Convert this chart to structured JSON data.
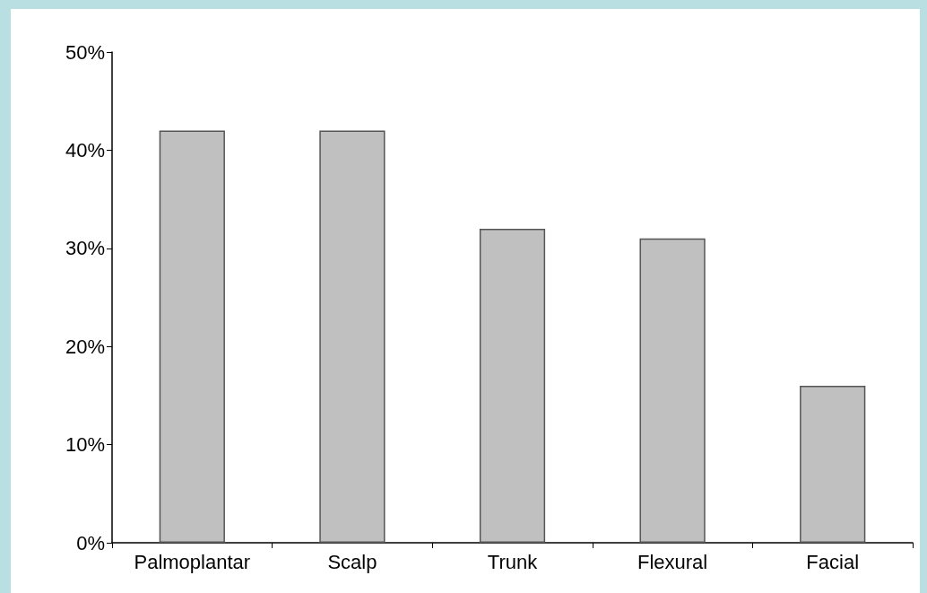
{
  "chart_data": {
    "type": "bar",
    "categories": [
      "Palmoplantar",
      "Scalp",
      "Trunk",
      "Flexural",
      "Facial"
    ],
    "values": [
      42,
      42,
      32,
      31,
      16
    ],
    "color": "#c0c0c0",
    "ylim": [
      0,
      50
    ],
    "yticks": [
      {
        "value": 0,
        "label": "0%"
      },
      {
        "value": 10,
        "label": "10%"
      },
      {
        "value": 20,
        "label": "20%"
      },
      {
        "value": 30,
        "label": "30%"
      },
      {
        "value": 40,
        "label": "40%"
      },
      {
        "value": 50,
        "label": "50%"
      }
    ],
    "grid": false
  }
}
